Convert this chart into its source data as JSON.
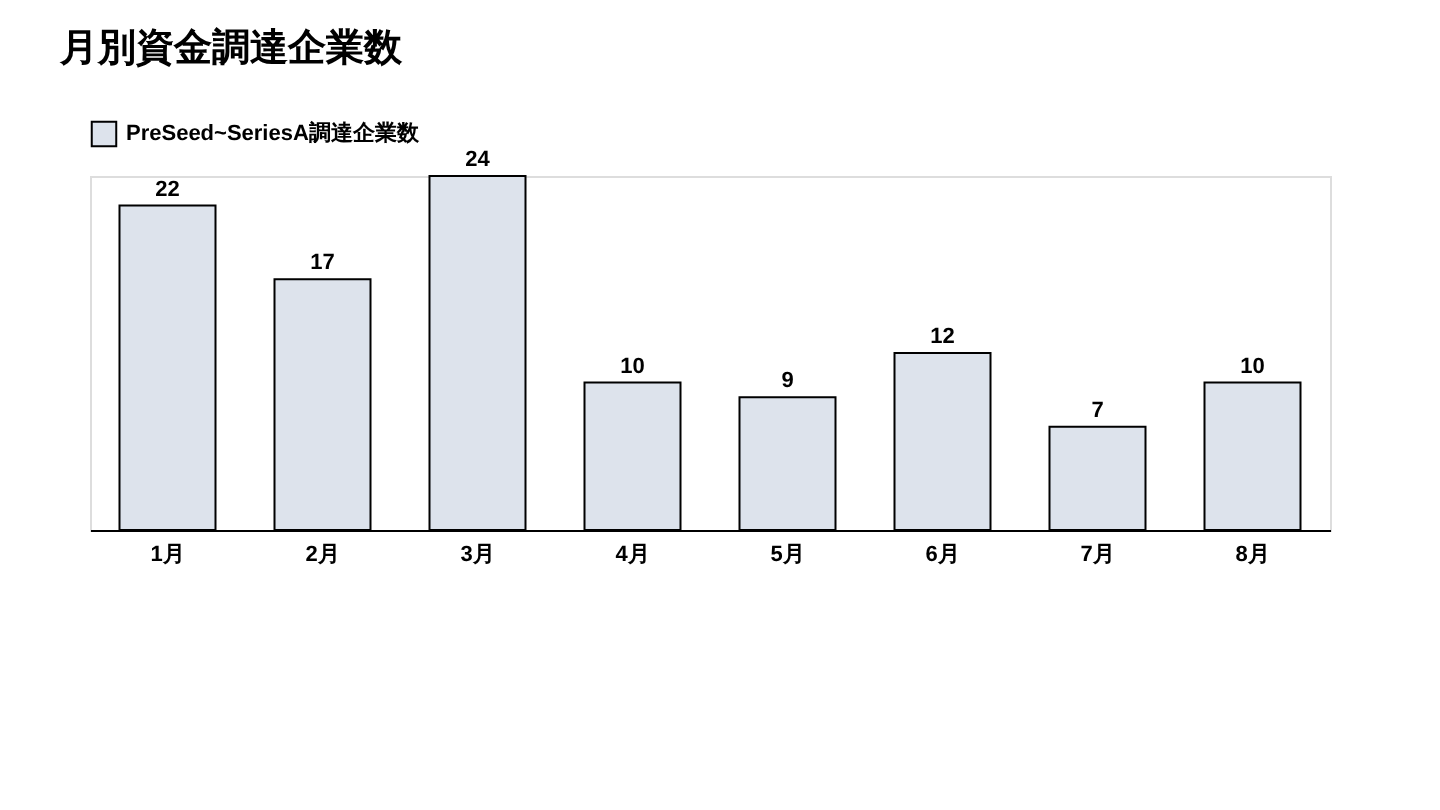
{
  "chart_data": {
    "type": "bar",
    "title": "月別資金調達企業数",
    "categories": [
      "1月",
      "2月",
      "3月",
      "4月",
      "5月",
      "6月",
      "7月",
      "8月"
    ],
    "series": [
      {
        "name": "PreSeed~SeriesA調達企業数",
        "color": "#dde3ec",
        "values": [
          22,
          17,
          24,
          10,
          9,
          12,
          7,
          10
        ]
      }
    ],
    "data_labels": true,
    "legend": "top left",
    "grid": false
  }
}
